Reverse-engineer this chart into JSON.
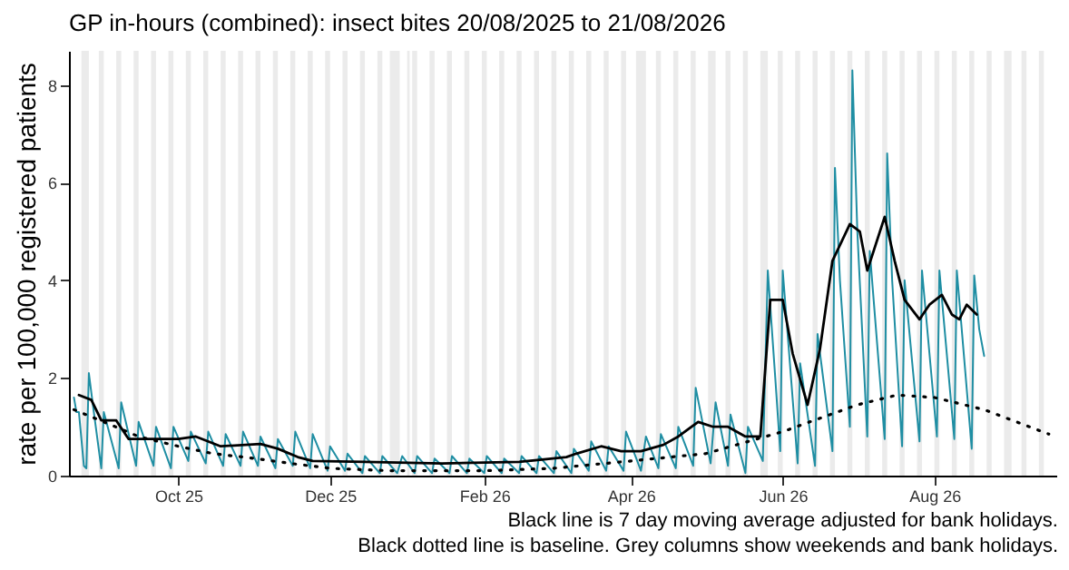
{
  "chart_data": {
    "type": "line",
    "title": "GP in-hours (combined): insect bites 20/08/2025 to 21/08/2026",
    "ylabel": "rate per 100,000 registered patients",
    "xlim": [
      "2025-08-18",
      "2026-09-19"
    ],
    "xticks": [
      {
        "value": "2025-10-01",
        "label": "Oct 25"
      },
      {
        "value": "2025-12-01",
        "label": "Dec 25"
      },
      {
        "value": "2026-02-01",
        "label": "Feb 26"
      },
      {
        "value": "2026-04-01",
        "label": "Apr 26"
      },
      {
        "value": "2026-06-01",
        "label": "Jun 26"
      },
      {
        "value": "2026-08-01",
        "label": "Aug 26"
      }
    ],
    "ylim": [
      0,
      8.7
    ],
    "yticks": [
      0,
      2,
      4,
      6,
      8
    ],
    "bands": [
      {
        "axis": "x",
        "from": "2025-08-23",
        "to": "2025-08-26",
        "color": "#ebebeb"
      },
      {
        "axis": "x",
        "from": "2025-08-30",
        "to": "2025-09-01",
        "color": "#ebebeb"
      },
      {
        "axis": "x",
        "from": "2025-09-06",
        "to": "2025-09-08",
        "color": "#ebebeb"
      },
      {
        "axis": "x",
        "from": "2025-09-13",
        "to": "2025-09-15",
        "color": "#ebebeb"
      },
      {
        "axis": "x",
        "from": "2025-09-20",
        "to": "2025-09-22",
        "color": "#ebebeb"
      },
      {
        "axis": "x",
        "from": "2025-09-27",
        "to": "2025-09-29",
        "color": "#ebebeb"
      },
      {
        "axis": "x",
        "from": "2025-10-04",
        "to": "2025-10-06",
        "color": "#ebebeb"
      },
      {
        "axis": "x",
        "from": "2025-10-11",
        "to": "2025-10-13",
        "color": "#ebebeb"
      },
      {
        "axis": "x",
        "from": "2025-10-18",
        "to": "2025-10-20",
        "color": "#ebebeb"
      },
      {
        "axis": "x",
        "from": "2025-10-25",
        "to": "2025-10-27",
        "color": "#ebebeb"
      },
      {
        "axis": "x",
        "from": "2025-11-01",
        "to": "2025-11-03",
        "color": "#ebebeb"
      },
      {
        "axis": "x",
        "from": "2025-11-08",
        "to": "2025-11-10",
        "color": "#ebebeb"
      },
      {
        "axis": "x",
        "from": "2025-11-15",
        "to": "2025-11-17",
        "color": "#ebebeb"
      },
      {
        "axis": "x",
        "from": "2025-11-22",
        "to": "2025-11-24",
        "color": "#ebebeb"
      },
      {
        "axis": "x",
        "from": "2025-11-29",
        "to": "2025-12-01",
        "color": "#ebebeb"
      },
      {
        "axis": "x",
        "from": "2025-12-06",
        "to": "2025-12-08",
        "color": "#ebebeb"
      },
      {
        "axis": "x",
        "from": "2025-12-13",
        "to": "2025-12-15",
        "color": "#ebebeb"
      },
      {
        "axis": "x",
        "from": "2025-12-20",
        "to": "2025-12-22",
        "color": "#ebebeb"
      },
      {
        "axis": "x",
        "from": "2025-12-25",
        "to": "2025-12-29",
        "color": "#ebebeb"
      },
      {
        "axis": "x",
        "from": "2026-01-01",
        "to": "2026-01-02",
        "color": "#ebebeb"
      },
      {
        "axis": "x",
        "from": "2026-01-03",
        "to": "2026-01-05",
        "color": "#ebebeb"
      },
      {
        "axis": "x",
        "from": "2026-01-10",
        "to": "2026-01-12",
        "color": "#ebebeb"
      },
      {
        "axis": "x",
        "from": "2026-01-17",
        "to": "2026-01-19",
        "color": "#ebebeb"
      },
      {
        "axis": "x",
        "from": "2026-01-24",
        "to": "2026-01-26",
        "color": "#ebebeb"
      },
      {
        "axis": "x",
        "from": "2026-01-31",
        "to": "2026-02-02",
        "color": "#ebebeb"
      },
      {
        "axis": "x",
        "from": "2026-02-07",
        "to": "2026-02-09",
        "color": "#ebebeb"
      },
      {
        "axis": "x",
        "from": "2026-02-14",
        "to": "2026-02-16",
        "color": "#ebebeb"
      },
      {
        "axis": "x",
        "from": "2026-02-21",
        "to": "2026-02-23",
        "color": "#ebebeb"
      },
      {
        "axis": "x",
        "from": "2026-02-28",
        "to": "2026-03-02",
        "color": "#ebebeb"
      },
      {
        "axis": "x",
        "from": "2026-03-07",
        "to": "2026-03-09",
        "color": "#ebebeb"
      },
      {
        "axis": "x",
        "from": "2026-03-14",
        "to": "2026-03-16",
        "color": "#ebebeb"
      },
      {
        "axis": "x",
        "from": "2026-03-21",
        "to": "2026-03-23",
        "color": "#ebebeb"
      },
      {
        "axis": "x",
        "from": "2026-03-28",
        "to": "2026-03-30",
        "color": "#ebebeb"
      },
      {
        "axis": "x",
        "from": "2026-04-03",
        "to": "2026-04-07",
        "color": "#ebebeb"
      },
      {
        "axis": "x",
        "from": "2026-04-11",
        "to": "2026-04-13",
        "color": "#ebebeb"
      },
      {
        "axis": "x",
        "from": "2026-04-18",
        "to": "2026-04-20",
        "color": "#ebebeb"
      },
      {
        "axis": "x",
        "from": "2026-04-25",
        "to": "2026-04-27",
        "color": "#ebebeb"
      },
      {
        "axis": "x",
        "from": "2026-05-02",
        "to": "2026-05-05",
        "color": "#ebebeb"
      },
      {
        "axis": "x",
        "from": "2026-05-09",
        "to": "2026-05-11",
        "color": "#ebebeb"
      },
      {
        "axis": "x",
        "from": "2026-05-16",
        "to": "2026-05-18",
        "color": "#ebebeb"
      },
      {
        "axis": "x",
        "from": "2026-05-23",
        "to": "2026-05-26",
        "color": "#ebebeb"
      },
      {
        "axis": "x",
        "from": "2026-05-30",
        "to": "2026-06-01",
        "color": "#ebebeb"
      },
      {
        "axis": "x",
        "from": "2026-06-06",
        "to": "2026-06-08",
        "color": "#ebebeb"
      },
      {
        "axis": "x",
        "from": "2026-06-13",
        "to": "2026-06-15",
        "color": "#ebebeb"
      },
      {
        "axis": "x",
        "from": "2026-06-20",
        "to": "2026-06-22",
        "color": "#ebebeb"
      },
      {
        "axis": "x",
        "from": "2026-06-27",
        "to": "2026-06-29",
        "color": "#ebebeb"
      },
      {
        "axis": "x",
        "from": "2026-07-04",
        "to": "2026-07-06",
        "color": "#ebebeb"
      },
      {
        "axis": "x",
        "from": "2026-07-11",
        "to": "2026-07-13",
        "color": "#ebebeb"
      },
      {
        "axis": "x",
        "from": "2026-07-18",
        "to": "2026-07-20",
        "color": "#ebebeb"
      },
      {
        "axis": "x",
        "from": "2026-07-25",
        "to": "2026-07-27",
        "color": "#ebebeb"
      },
      {
        "axis": "x",
        "from": "2026-08-01",
        "to": "2026-08-03",
        "color": "#ebebeb"
      },
      {
        "axis": "x",
        "from": "2026-08-08",
        "to": "2026-08-10",
        "color": "#ebebeb"
      },
      {
        "axis": "x",
        "from": "2026-08-15",
        "to": "2026-08-17",
        "color": "#ebebeb"
      },
      {
        "axis": "x",
        "from": "2026-08-22",
        "to": "2026-08-24",
        "color": "#ebebeb"
      },
      {
        "axis": "x",
        "from": "2026-08-29",
        "to": "2026-09-01",
        "color": "#ebebeb"
      },
      {
        "axis": "x",
        "from": "2026-09-05",
        "to": "2026-09-07",
        "color": "#ebebeb"
      },
      {
        "axis": "x",
        "from": "2026-09-12",
        "to": "2026-09-14",
        "color": "#ebebeb"
      }
    ],
    "series": [
      {
        "color": "#1f8ea3",
        "line_style": "solid",
        "x": [
          "2025-08-20",
          "2025-08-21",
          "2025-08-22",
          "2025-08-24",
          "2025-08-25",
          "2025-08-26",
          "2025-08-28",
          "2025-08-31",
          "2025-09-01",
          "2025-09-07",
          "2025-09-08",
          "2025-09-14",
          "2025-09-15",
          "2025-09-21",
          "2025-09-22",
          "2025-09-28",
          "2025-09-29",
          "2025-10-05",
          "2025-10-06",
          "2025-10-12",
          "2025-10-13",
          "2025-10-19",
          "2025-10-20",
          "2025-10-26",
          "2025-10-27",
          "2025-11-02",
          "2025-11-03",
          "2025-11-09",
          "2025-11-10",
          "2025-11-16",
          "2025-11-17",
          "2025-11-23",
          "2025-11-24",
          "2025-11-30",
          "2025-12-01",
          "2025-12-07",
          "2025-12-08",
          "2025-12-14",
          "2025-12-15",
          "2025-12-21",
          "2025-12-22",
          "2025-12-28",
          "2025-12-30",
          "2026-01-04",
          "2026-01-05",
          "2026-01-11",
          "2026-01-12",
          "2026-01-18",
          "2026-01-19",
          "2026-01-25",
          "2026-01-26",
          "2026-02-01",
          "2026-02-02",
          "2026-02-08",
          "2026-02-09",
          "2026-02-15",
          "2026-02-16",
          "2026-02-22",
          "2026-02-23",
          "2026-03-01",
          "2026-03-02",
          "2026-03-08",
          "2026-03-09",
          "2026-03-15",
          "2026-03-16",
          "2026-03-22",
          "2026-03-23",
          "2026-03-29",
          "2026-03-30",
          "2026-04-05",
          "2026-04-07",
          "2026-04-12",
          "2026-04-13",
          "2026-04-19",
          "2026-04-20",
          "2026-04-26",
          "2026-04-27",
          "2026-05-03",
          "2026-05-05",
          "2026-05-10",
          "2026-05-11",
          "2026-05-17",
          "2026-05-18",
          "2026-05-24",
          "2026-05-26",
          "2026-05-29",
          "2026-05-31",
          "2026-06-01",
          "2026-06-07",
          "2026-06-08",
          "2026-06-14",
          "2026-06-15",
          "2026-06-21",
          "2026-06-22",
          "2026-06-24",
          "2026-06-28",
          "2026-06-29",
          "2026-07-01",
          "2026-07-05",
          "2026-07-06",
          "2026-07-12",
          "2026-07-13",
          "2026-07-15",
          "2026-07-19",
          "2026-07-20",
          "2026-07-26",
          "2026-07-27",
          "2026-08-02",
          "2026-08-03",
          "2026-08-09",
          "2026-08-10",
          "2026-08-16",
          "2026-08-17",
          "2026-08-19",
          "2026-08-21"
        ],
        "values": [
          1.6,
          1.3,
          1.3,
          0.2,
          0.15,
          2.1,
          1.3,
          0.15,
          1.3,
          0.15,
          1.5,
          0.2,
          1.1,
          0.2,
          1.0,
          0.15,
          1.0,
          0.3,
          0.9,
          0.25,
          0.9,
          0.2,
          0.85,
          0.2,
          0.9,
          0.2,
          0.8,
          0.15,
          0.75,
          0.2,
          0.9,
          0.15,
          0.85,
          0.1,
          0.6,
          0.1,
          0.45,
          0.05,
          0.4,
          0.05,
          0.4,
          0.05,
          0.4,
          0.05,
          0.4,
          0.05,
          0.35,
          0.05,
          0.4,
          0.05,
          0.35,
          0.05,
          0.4,
          0.05,
          0.35,
          0.05,
          0.4,
          0.05,
          0.4,
          0.05,
          0.5,
          0.05,
          0.55,
          0.1,
          0.7,
          0.1,
          0.6,
          0.1,
          0.9,
          0.1,
          0.8,
          0.15,
          0.85,
          0.15,
          1.0,
          0.2,
          1.8,
          0.25,
          1.5,
          0.2,
          1.25,
          0.05,
          1.0,
          0.3,
          4.2,
          2.0,
          0.5,
          4.2,
          0.25,
          2.3,
          0.2,
          2.9,
          0.5,
          6.3,
          4.0,
          1.0,
          8.3,
          5.0,
          0.8,
          4.6,
          0.75,
          6.6,
          4.0,
          0.6,
          4.0,
          0.7,
          4.2,
          0.8,
          4.2,
          0.75,
          4.2,
          0.55,
          4.1,
          3.0,
          2.45
        ]
      },
      {
        "color": "#000000",
        "line_style": "solid",
        "x": [
          "2025-08-22",
          "2025-08-27",
          "2025-08-31",
          "2025-09-06",
          "2025-09-11",
          "2025-10-01",
          "2025-10-08",
          "2025-10-18",
          "2025-11-03",
          "2025-11-10",
          "2025-11-18",
          "2025-11-24",
          "2025-12-15",
          "2026-01-15",
          "2026-02-15",
          "2026-03-06",
          "2026-03-10",
          "2026-03-20",
          "2026-03-28",
          "2026-04-05",
          "2026-04-14",
          "2026-04-20",
          "2026-04-28",
          "2026-05-04",
          "2026-05-10",
          "2026-05-17",
          "2026-05-23",
          "2026-05-27",
          "2026-06-01",
          "2026-06-05",
          "2026-06-11",
          "2026-06-16",
          "2026-06-21",
          "2026-06-28",
          "2026-07-02",
          "2026-07-05",
          "2026-07-12",
          "2026-07-16",
          "2026-07-20",
          "2026-07-26",
          "2026-07-30",
          "2026-08-04",
          "2026-08-08",
          "2026-08-11",
          "2026-08-14",
          "2026-08-18"
        ],
        "values": [
          1.65,
          1.55,
          1.13,
          1.13,
          0.75,
          0.75,
          0.8,
          0.6,
          0.65,
          0.55,
          0.38,
          0.3,
          0.28,
          0.25,
          0.28,
          0.38,
          0.45,
          0.6,
          0.5,
          0.5,
          0.63,
          0.8,
          1.1,
          1.0,
          1.0,
          0.8,
          0.8,
          3.6,
          3.6,
          2.5,
          1.45,
          2.6,
          4.4,
          5.15,
          5.0,
          4.2,
          5.3,
          4.4,
          3.6,
          3.2,
          3.5,
          3.7,
          3.3,
          3.2,
          3.5,
          3.3
        ]
      },
      {
        "color": "#000000",
        "line_style": "dotted",
        "x": [
          "2025-08-20",
          "2025-09-01",
          "2025-09-15",
          "2025-10-01",
          "2025-10-15",
          "2025-11-01",
          "2025-11-15",
          "2025-12-01",
          "2025-12-25",
          "2026-02-01",
          "2026-03-01",
          "2026-04-01",
          "2026-05-01",
          "2026-06-01",
          "2026-07-01",
          "2026-07-17",
          "2026-08-01",
          "2026-08-21",
          "2026-09-16"
        ],
        "values": [
          1.35,
          1.1,
          0.8,
          0.6,
          0.45,
          0.35,
          0.25,
          0.15,
          0.1,
          0.1,
          0.15,
          0.3,
          0.45,
          0.9,
          1.45,
          1.65,
          1.6,
          1.35,
          0.85
        ]
      }
    ],
    "annotations": [
      "Black line is 7 day moving average adjusted for bank holidays.",
      "Black dotted line is baseline. Grey columns show weekends and bank holidays."
    ]
  }
}
